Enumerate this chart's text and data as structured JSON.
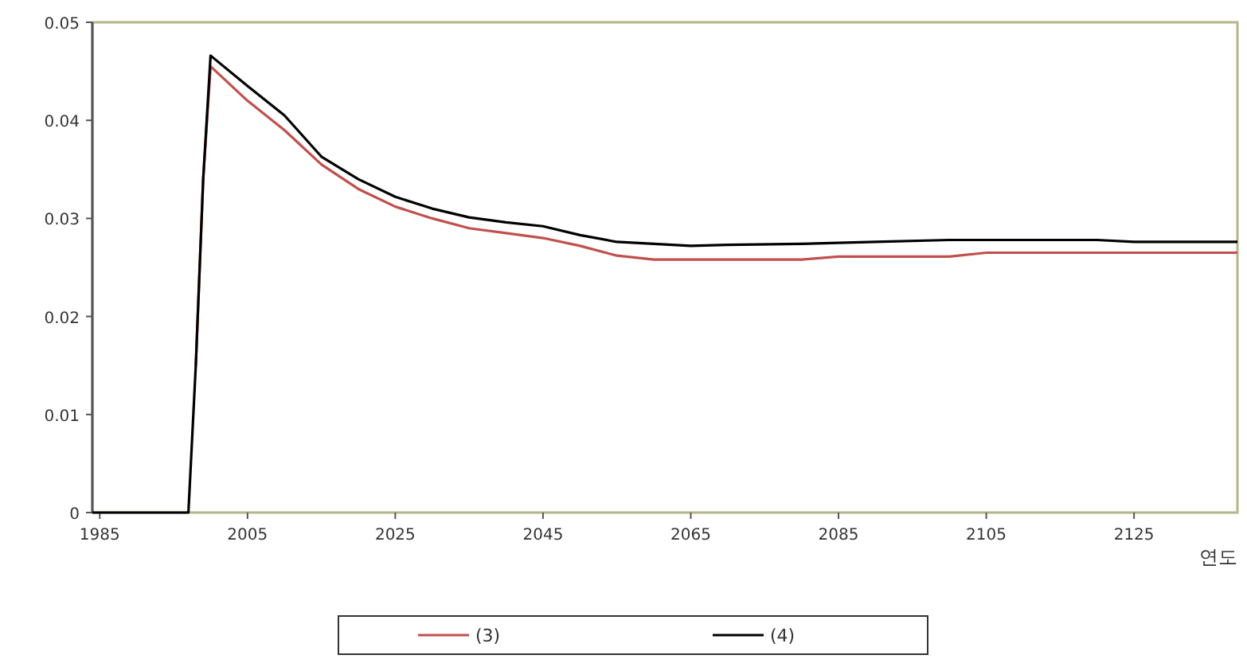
{
  "chart_data": {
    "type": "line",
    "xlabel": "연도",
    "xlim": [
      1984,
      2139
    ],
    "xticks": [
      1985,
      2005,
      2025,
      2045,
      2065,
      2085,
      2105,
      2125
    ],
    "ylim": [
      0,
      0.05
    ],
    "yticks": [
      0,
      0.01,
      0.02,
      0.03,
      0.04,
      0.05
    ],
    "grid": false,
    "legend": "bottom",
    "series": [
      {
        "name": "(3)",
        "color": "#c0504d",
        "x": [
          1998,
          1999,
          2000,
          2005,
          2010,
          2015,
          2020,
          2025,
          2030,
          2035,
          2040,
          2045,
          2050,
          2055,
          2060,
          2070,
          2080,
          2085,
          2100,
          2105,
          2139
        ],
        "values": [
          0.015,
          0.034,
          0.0455,
          0.042,
          0.039,
          0.0355,
          0.033,
          0.0312,
          0.03,
          0.029,
          0.0285,
          0.028,
          0.0272,
          0.0262,
          0.0258,
          0.0258,
          0.0258,
          0.0261,
          0.0261,
          0.0265,
          0.0265
        ]
      },
      {
        "name": "(4)",
        "color": "#000000",
        "x": [
          1984,
          1997,
          1998,
          1999,
          2000,
          2005,
          2010,
          2015,
          2020,
          2025,
          2030,
          2035,
          2040,
          2045,
          2050,
          2055,
          2060,
          2065,
          2070,
          2080,
          2090,
          2100,
          2110,
          2120,
          2125,
          2139
        ],
        "values": [
          0,
          0,
          0.015,
          0.034,
          0.0466,
          0.0435,
          0.0405,
          0.0363,
          0.034,
          0.0322,
          0.031,
          0.0301,
          0.0296,
          0.0292,
          0.0283,
          0.0276,
          0.0274,
          0.0272,
          0.0273,
          0.0274,
          0.0276,
          0.0278,
          0.0278,
          0.0278,
          0.0276,
          0.0276
        ]
      }
    ]
  }
}
